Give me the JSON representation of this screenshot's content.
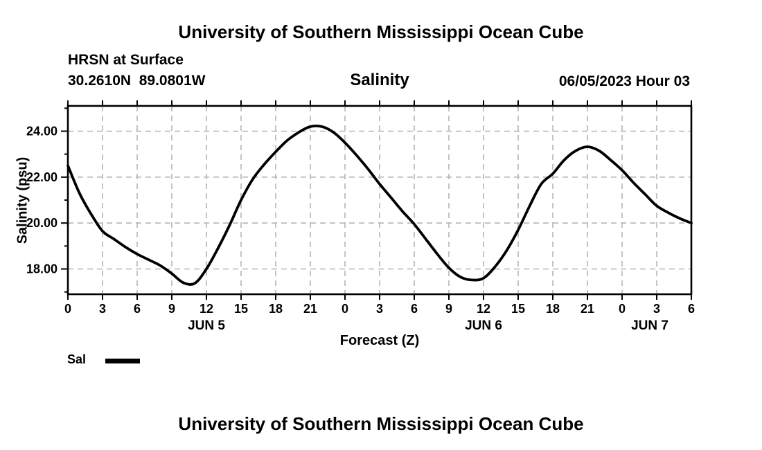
{
  "page": {
    "top_title": "University of Southern Mississippi Ocean Cube",
    "bottom_title": "University of Southern Mississippi Ocean Cube"
  },
  "header": {
    "station": "HRSN at Surface",
    "coordinates": "30.2610N  89.0801W",
    "variable": "Salinity",
    "run_label": "06/05/2023 Hour 03"
  },
  "legend": {
    "label": "Sal",
    "swatch_color": "#000000",
    "position": "bottom-left"
  },
  "colors": {
    "line": "#000000",
    "grid": "#b5b5b5",
    "text": "#000000",
    "background": "#ffffff"
  },
  "chart_data": {
    "type": "line",
    "title": "Salinity",
    "xlabel": "Forecast (Z)",
    "ylabel": "Salinity (psu)",
    "xlim": [
      0,
      54
    ],
    "ylim": [
      16.9,
      25.1
    ],
    "grid": "dashed, vertical every 3 h, horizontal every 2 psu",
    "legend_position": "bottom-left",
    "x_ticks": {
      "hours": [
        0,
        3,
        6,
        9,
        12,
        15,
        18,
        21,
        24,
        27,
        30,
        33,
        36,
        39,
        42,
        45,
        48,
        51,
        54
      ],
      "labels": [
        "0",
        "3",
        "6",
        "9",
        "12",
        "15",
        "18",
        "21",
        "0",
        "3",
        "6",
        "9",
        "12",
        "15",
        "18",
        "21",
        "0",
        "3",
        "6"
      ]
    },
    "y_ticks": {
      "major": [
        18,
        20,
        22,
        24
      ],
      "labels": [
        "18.00",
        "20.00",
        "22.00",
        "24.00"
      ],
      "minor": [
        17,
        19,
        21,
        23,
        25
      ]
    },
    "day_labels": [
      {
        "text": "JUN 5",
        "hour": 12
      },
      {
        "text": "JUN 6",
        "hour": 36
      },
      {
        "text": "JUN 7",
        "hour": 50.4
      }
    ],
    "series": [
      {
        "name": "Sal",
        "color": "#000000",
        "x": [
          0,
          1,
          2,
          3,
          4,
          5,
          6,
          7,
          8,
          9,
          10,
          11,
          12,
          13,
          14,
          15,
          16,
          17,
          18,
          19,
          20,
          21,
          22,
          23,
          24,
          25,
          26,
          27,
          28,
          29,
          30,
          31,
          32,
          33,
          34,
          35,
          36,
          37,
          38,
          39,
          40,
          41,
          42,
          43,
          44,
          45,
          46,
          47,
          48,
          49,
          50,
          51,
          52,
          53,
          54
        ],
        "values": [
          22.5,
          21.3,
          20.4,
          19.65,
          19.3,
          18.95,
          18.65,
          18.4,
          18.15,
          17.8,
          17.4,
          17.38,
          18.0,
          18.9,
          19.9,
          21.0,
          21.9,
          22.55,
          23.1,
          23.6,
          23.95,
          24.2,
          24.2,
          23.95,
          23.5,
          22.95,
          22.35,
          21.7,
          21.1,
          20.5,
          19.95,
          19.3,
          18.65,
          18.05,
          17.65,
          17.52,
          17.6,
          18.1,
          18.8,
          19.7,
          20.75,
          21.7,
          22.15,
          22.75,
          23.15,
          23.32,
          23.15,
          22.75,
          22.3,
          21.75,
          21.25,
          20.75,
          20.45,
          20.2,
          20.0
        ]
      }
    ]
  }
}
